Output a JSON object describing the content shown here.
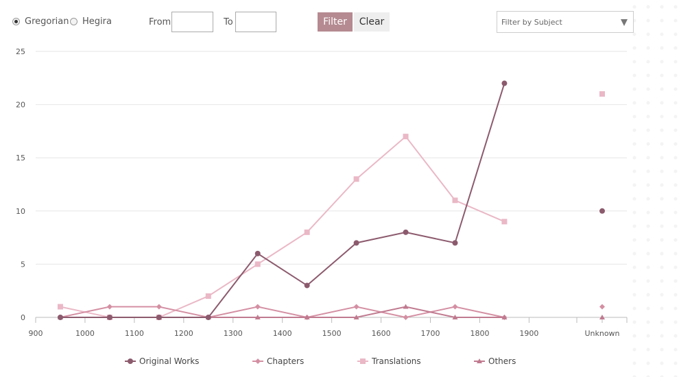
{
  "controls": {
    "gregorian_label": "Gregorian",
    "hegira_label": "Hegira",
    "from_label": "From",
    "to_label": "To",
    "from_value": "",
    "to_value": "",
    "filter_label": "Filter",
    "clear_label": "Clear",
    "subject_placeholder": "Filter by Subject",
    "selected_calendar": "Gregorian"
  },
  "chart_data": {
    "type": "line",
    "x_ticks": [
      "900",
      "1000",
      "1100",
      "1200",
      "1300",
      "1400",
      "1500",
      "1600",
      "1700",
      "1800",
      "1900",
      "Unknown"
    ],
    "y_ticks": [
      "0",
      "5",
      "10",
      "15",
      "20",
      "25"
    ],
    "ylim": [
      0,
      25
    ],
    "xlim": [
      900,
      1900
    ],
    "grid": true,
    "legend_position": "bottom",
    "x": [
      950,
      1050,
      1150,
      1250,
      1350,
      1450,
      1550,
      1650,
      1750,
      1850
    ],
    "series": [
      {
        "name": "Original Works",
        "color": "#8c5a6d",
        "marker": "circle",
        "values": [
          0,
          0,
          0,
          0,
          6,
          3,
          7,
          8,
          7,
          22
        ],
        "unknown": 10
      },
      {
        "name": "Chapters",
        "color": "#d48fa3",
        "marker": "diamond",
        "values": [
          0,
          1,
          1,
          0,
          1,
          0,
          1,
          0,
          1,
          0
        ],
        "unknown": 1
      },
      {
        "name": "Translations",
        "color": "#eab8c6",
        "marker": "square",
        "values": [
          1,
          0,
          0,
          2,
          5,
          8,
          13,
          17,
          11,
          9
        ],
        "unknown": 21
      },
      {
        "name": "Others",
        "color": "#c07a90",
        "marker": "triangle",
        "values": [
          0,
          0,
          0,
          0,
          0,
          0,
          0,
          1,
          0,
          0
        ],
        "unknown": 0
      }
    ]
  }
}
